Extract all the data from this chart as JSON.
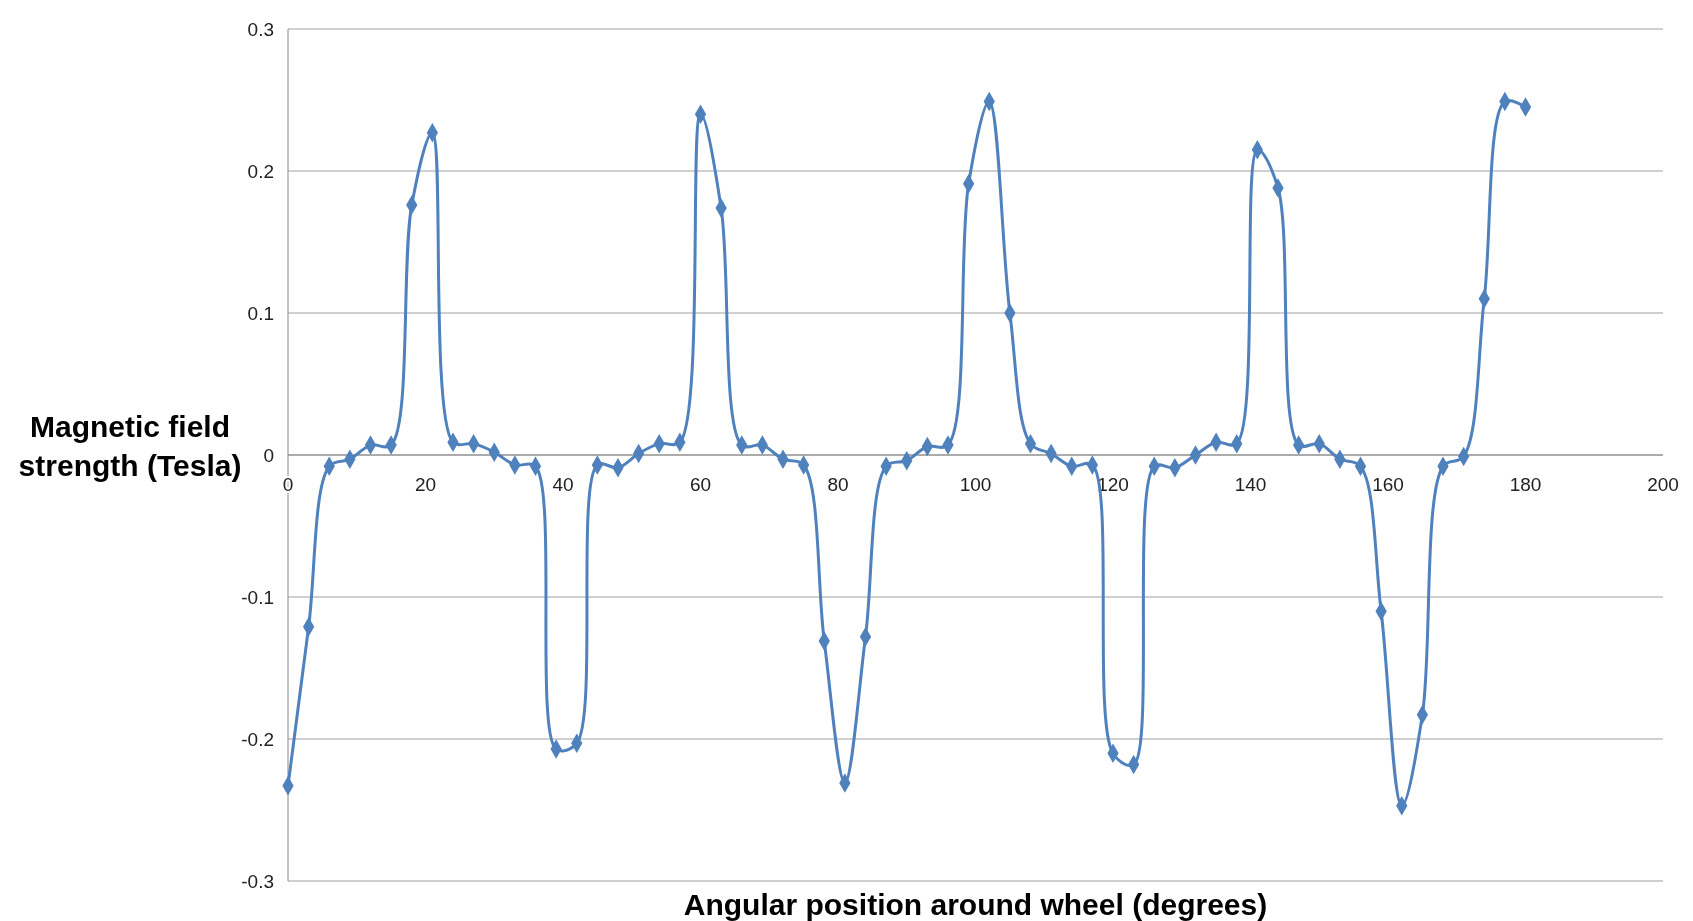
{
  "chart_data": {
    "type": "line",
    "xlabel": "Angular position around wheel (degrees)",
    "ylabel": "Magnetic field strength (Tesla)",
    "x": [
      0,
      3,
      6,
      9,
      12,
      15,
      18,
      21,
      24,
      27,
      30,
      33,
      36,
      39,
      42,
      45,
      48,
      51,
      54,
      57,
      60,
      63,
      66,
      69,
      72,
      75,
      78,
      81,
      84,
      87,
      90,
      93,
      96,
      99,
      102,
      105,
      108,
      111,
      114,
      117,
      120,
      123,
      126,
      129,
      132,
      135,
      138,
      141,
      144,
      147,
      150,
      153,
      156,
      159,
      162,
      165,
      168,
      171,
      174,
      177,
      180
    ],
    "series": [
      {
        "color": "#4f81bd",
        "values": [
          -0.233,
          -0.121,
          -0.008,
          -0.003,
          0.007,
          0.007,
          0.176,
          0.227,
          0.009,
          0.008,
          0.002,
          -0.007,
          -0.008,
          -0.207,
          -0.203,
          -0.007,
          -0.009,
          0.001,
          0.008,
          0.009,
          0.24,
          0.174,
          0.007,
          0.007,
          -0.003,
          -0.007,
          -0.131,
          -0.231,
          -0.128,
          -0.008,
          -0.004,
          0.006,
          0.007,
          0.191,
          0.249,
          0.1,
          0.008,
          0.001,
          -0.008,
          -0.007,
          -0.21,
          -0.218,
          -0.008,
          -0.009,
          0.0,
          0.009,
          0.008,
          0.215,
          0.188,
          0.007,
          0.008,
          -0.003,
          -0.008,
          -0.11,
          -0.247,
          -0.183,
          -0.008,
          -0.001,
          0.11,
          0.249,
          0.245
        ]
      }
    ],
    "xlim": [
      0,
      200
    ],
    "xticks": [
      0,
      20,
      40,
      60,
      80,
      100,
      120,
      140,
      160,
      180,
      200
    ],
    "ylim": [
      -0.3,
      0.3
    ],
    "yticks": [
      -0.3,
      -0.2,
      -0.1,
      0,
      0.1,
      0.2,
      0.3
    ],
    "grid": "y",
    "marker": "diamond",
    "line_style": "solid"
  }
}
